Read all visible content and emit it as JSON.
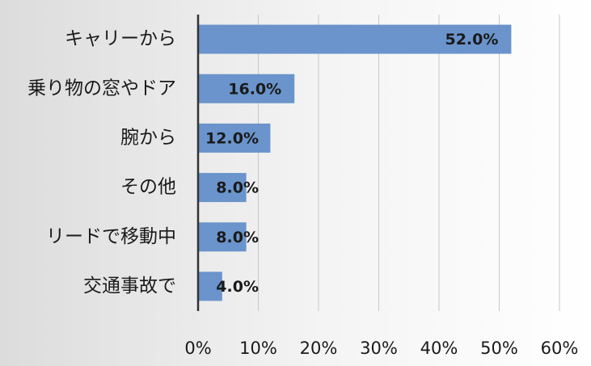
{
  "chart_data": {
    "type": "hbar",
    "categories": [
      "キャリーから",
      "乗り物の窓やドア",
      "腕から",
      "その他",
      "リードで移動中",
      "交通事故で"
    ],
    "values": [
      52,
      16,
      12,
      8,
      8,
      4
    ],
    "value_labels": [
      "52.0%",
      "16.0%",
      "12.0%",
      "8.0%",
      "8.0%",
      "4.0%"
    ],
    "color": "#6a94cb",
    "xlim": [
      0,
      60
    ],
    "xticks": [
      {
        "value": 0,
        "label": "0%"
      },
      {
        "value": 10,
        "label": "10%"
      },
      {
        "value": 20,
        "label": "20%"
      },
      {
        "value": 30,
        "label": "30%"
      },
      {
        "value": 40,
        "label": "40%"
      },
      {
        "value": 50,
        "label": "50%"
      },
      {
        "value": 60,
        "label": "60%"
      }
    ],
    "grid": true
  }
}
